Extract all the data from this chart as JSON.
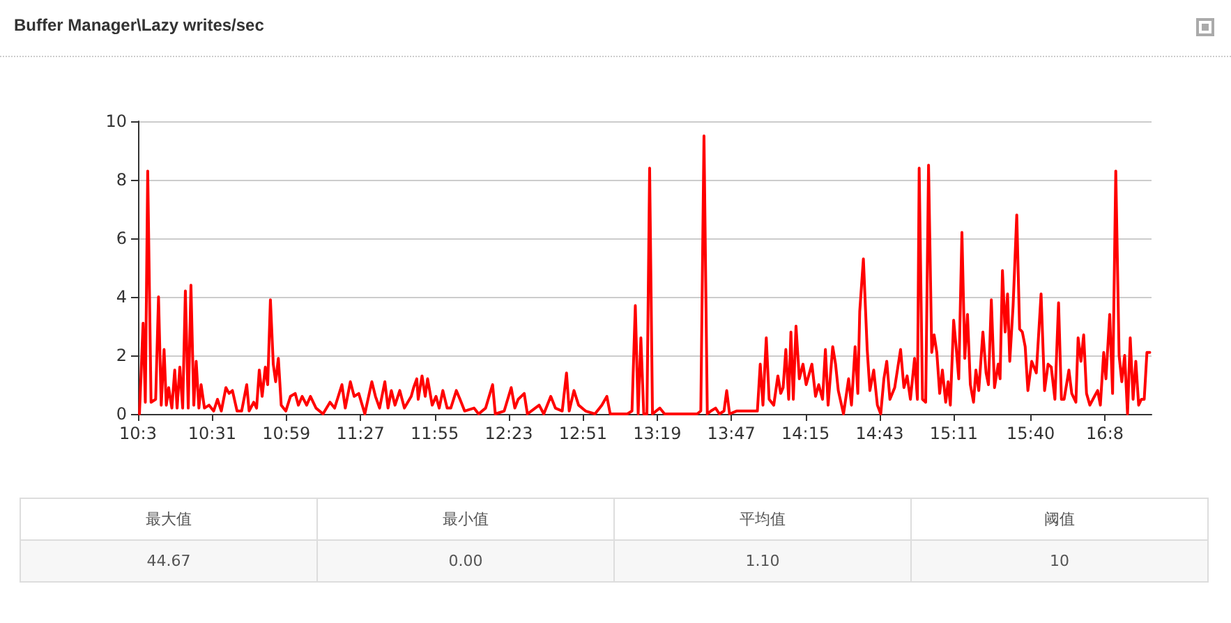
{
  "chart_data": {
    "type": "line",
    "title": "Buffer Manager\\Lazy writes/sec",
    "x": [
      10.059,
      10.082,
      10.096,
      10.111,
      10.132,
      10.161,
      10.179,
      10.196,
      10.214,
      10.228,
      10.243,
      10.263,
      10.281,
      10.296,
      10.313,
      10.331,
      10.348,
      10.366,
      10.383,
      10.401,
      10.416,
      10.433,
      10.447,
      10.468,
      10.497,
      10.526,
      10.55,
      10.574,
      10.603,
      10.623,
      10.644,
      10.673,
      10.702,
      10.734,
      10.749,
      10.778,
      10.796,
      10.813,
      10.831,
      10.851,
      10.866,
      10.883,
      10.901,
      10.916,
      10.933,
      10.951,
      10.98,
      11.009,
      11.039,
      11.059,
      11.083,
      11.111,
      11.135,
      11.17,
      11.214,
      11.258,
      11.287,
      11.333,
      11.354,
      11.386,
      11.41,
      11.439,
      11.477,
      11.521,
      11.544,
      11.57,
      11.603,
      11.623,
      11.644,
      11.667,
      11.697,
      11.726,
      11.769,
      11.784,
      11.804,
      11.813,
      11.837,
      11.857,
      11.872,
      11.901,
      11.925,
      11.945,
      11.968,
      11.995,
      12.018,
      12.053,
      12.076,
      12.105,
      12.164,
      12.193,
      12.237,
      12.281,
      12.298,
      12.354,
      12.398,
      12.421,
      12.442,
      12.48,
      12.5,
      12.574,
      12.603,
      12.647,
      12.676,
      12.719,
      12.746,
      12.763,
      12.793,
      12.822,
      12.866,
      12.925,
      12.968,
      13,
      13.021,
      13.07,
      13.129,
      13.158,
      13.179,
      13.197,
      13.214,
      13.232,
      13.252,
      13.269,
      13.287,
      13.333,
      13.363,
      13.392,
      13.568,
      13.591,
      13.611,
      13.632,
      13.655,
      13.684,
      13.708,
      13.737,
      13.754,
      13.772,
      13.816,
      13.947,
      13.965,
      13.982,
      14.003,
      14.021,
      14.05,
      14.076,
      14.094,
      14.109,
      14.126,
      14.144,
      14.158,
      14.173,
      14.19,
      14.211,
      14.234,
      14.254,
      14.29,
      14.313,
      14.333,
      14.357,
      14.375,
      14.392,
      14.421,
      14.439,
      14.456,
      14.489,
      14.521,
      14.539,
      14.562,
      14.579,
      14.591,
      14.614,
      14.638,
      14.655,
      14.679,
      14.702,
      14.723,
      14.743,
      14.761,
      14.781,
      14.811,
      14.831,
      14.848,
      14.869,
      14.889,
      14.91,
      14.936,
      14.954,
      14.965,
      14.986,
      15.006,
      15.024,
      15.044,
      15.059,
      15.076,
      15.094,
      15.111,
      15.132,
      15.147,
      15.161,
      15.182,
      15.199,
      15.214,
      15.234,
      15.252,
      15.269,
      15.287,
      15.307,
      15.322,
      15.34,
      15.366,
      15.386,
      15.401,
      15.419,
      15.439,
      15.462,
      15.474,
      15.489,
      15.506,
      15.521,
      15.535,
      15.556,
      15.579,
      15.597,
      15.614,
      15.632,
      15.649,
      15.673,
      15.702,
      15.732,
      15.754,
      15.776,
      15.796,
      15.819,
      15.842,
      15.86,
      15.877,
      15.907,
      15.925,
      15.951,
      15.965,
      15.983,
      16,
      16.018,
      16.039,
      16.068,
      16.088,
      16.105,
      16.126,
      16.14,
      16.164,
      16.182,
      16.202,
      16.223,
      16.24,
      16.258,
      16.276,
      16.293,
      16.311,
      16.328,
      16.346,
      16.363,
      16.381,
      16.398,
      16.416
    ],
    "series": [
      {
        "color": "#ff0000",
        "values": [
          0,
          3.1,
          0.4,
          8.3,
          0.4,
          0.5,
          4.0,
          0.3,
          2.2,
          0.3,
          0.9,
          0.2,
          1.5,
          0.2,
          1.6,
          0.2,
          4.2,
          0.2,
          4.4,
          0.3,
          1.8,
          0.2,
          1.0,
          0.2,
          0.3,
          0.1,
          0.5,
          0.1,
          0.9,
          0.7,
          0.8,
          0.1,
          0.1,
          1.0,
          0.1,
          0.4,
          0.2,
          1.5,
          0.6,
          1.6,
          1.0,
          3.9,
          1.7,
          1.1,
          1.9,
          0.3,
          0.1,
          0.6,
          0.7,
          0.3,
          0.6,
          0.3,
          0.6,
          0.2,
          0.0,
          0.4,
          0.2,
          1.0,
          0.2,
          1.1,
          0.6,
          0.7,
          0.0,
          1.1,
          0.6,
          0.2,
          1.1,
          0.2,
          0.8,
          0.3,
          0.8,
          0.2,
          0.6,
          0.9,
          1.2,
          0.5,
          1.3,
          0.6,
          1.2,
          0.3,
          0.6,
          0.2,
          0.8,
          0.2,
          0.2,
          0.8,
          0.5,
          0.1,
          0.2,
          0.0,
          0.2,
          1.0,
          0.0,
          0.1,
          0.9,
          0.2,
          0.5,
          0.7,
          0.0,
          0.3,
          0.0,
          0.6,
          0.2,
          0.1,
          1.4,
          0.1,
          0.8,
          0.3,
          0.1,
          0.0,
          0.3,
          0.6,
          0.0,
          0.0,
          0.0,
          0.1,
          3.7,
          0.0,
          2.6,
          0.0,
          0.0,
          8.4,
          0.0,
          0.2,
          0.0,
          0.0,
          0.0,
          0.1,
          9.5,
          0.0,
          0.1,
          0.2,
          0.0,
          0.1,
          0.8,
          0.0,
          0.1,
          0.1,
          1.7,
          0.3,
          2.6,
          0.5,
          0.3,
          1.3,
          0.7,
          0.9,
          2.2,
          0.5,
          2.8,
          0.5,
          3.0,
          1.2,
          1.7,
          1.0,
          1.7,
          0.6,
          1.0,
          0.5,
          2.2,
          0.3,
          2.3,
          1.7,
          0.8,
          0.0,
          1.2,
          0.3,
          2.3,
          0.7,
          3.5,
          5.3,
          2.2,
          0.8,
          1.5,
          0.3,
          0.0,
          1.2,
          1.8,
          0.5,
          0.9,
          1.6,
          2.2,
          0.9,
          1.3,
          0.5,
          1.9,
          0.5,
          8.4,
          0.5,
          0.4,
          8.5,
          2.1,
          2.7,
          2.1,
          0.7,
          1.5,
          0.4,
          1.1,
          0.3,
          3.2,
          2.2,
          1.2,
          6.2,
          1.9,
          3.4,
          1.0,
          0.4,
          1.5,
          0.8,
          2.8,
          1.4,
          1.0,
          3.9,
          0.9,
          1.7,
          1.2,
          4.9,
          2.8,
          4.1,
          1.8,
          3.7,
          6.8,
          2.9,
          2.8,
          2.3,
          0.8,
          1.8,
          1.4,
          4.1,
          0.8,
          1.7,
          1.6,
          0.5,
          3.8,
          0.5,
          0.5,
          1.5,
          0.7,
          0.4,
          2.6,
          1.8,
          2.7,
          0.7,
          0.3,
          0.6,
          0.8,
          0.3,
          2.1,
          1.2,
          3.4,
          0.7,
          8.3,
          2.0,
          1.1,
          2.0,
          0.0,
          2.6,
          0.5,
          1.8,
          0.3,
          0.5,
          0.5,
          2.1,
          2.1
        ]
      }
    ],
    "xlim": [
      10.05,
      16.427
    ],
    "xticks": [
      {
        "value": 10.05,
        "label": "10:3"
      },
      {
        "value": 10.5167,
        "label": "10:31"
      },
      {
        "value": 10.9833,
        "label": "10:59"
      },
      {
        "value": 11.45,
        "label": "11:27"
      },
      {
        "value": 11.9167,
        "label": "11:55"
      },
      {
        "value": 12.3833,
        "label": "12:23"
      },
      {
        "value": 12.85,
        "label": "12:51"
      },
      {
        "value": 13.3167,
        "label": "13:19"
      },
      {
        "value": 13.7833,
        "label": "13:47"
      },
      {
        "value": 14.25,
        "label": "14:15"
      },
      {
        "value": 14.7167,
        "label": "14:43"
      },
      {
        "value": 15.1833,
        "label": "15:11"
      },
      {
        "value": 15.6667,
        "label": "15:40"
      },
      {
        "value": 16.1333,
        "label": "16:8"
      }
    ],
    "ylim": [
      0,
      10
    ],
    "yticks": [
      0,
      2,
      4,
      6,
      8,
      10
    ],
    "grid": "y",
    "marker": "none",
    "line_style": "solid",
    "annotations": [
      "最大值",
      "最小值",
      "平均值",
      "阈值",
      "44.67",
      "0.00",
      "1.10",
      "10"
    ]
  }
}
